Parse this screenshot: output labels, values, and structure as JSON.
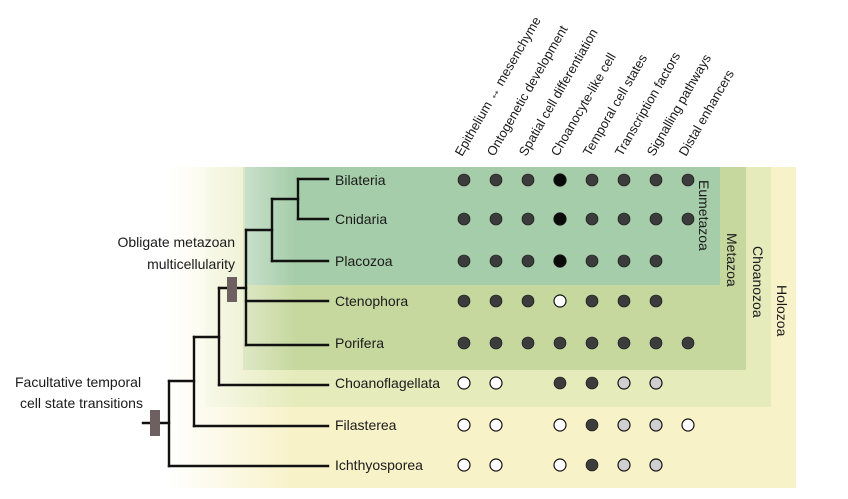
{
  "colors": {
    "holozoa": "#f8f2c8",
    "choanozoa": "#e6ebbb",
    "metazoa": "#c7d89f",
    "eumetazoa": "#a6cdaa",
    "branch": "#111111",
    "marker": "#6e6060",
    "dot_dark": "#3c3c3c",
    "dot_black": "#0a0a0a",
    "dot_grey": "#cfcfcf",
    "dot_white": "#ffffff"
  },
  "columns": [
    "Epithelium ↔ mesenchyme",
    "Ontogenetic development",
    "Spatial cell differentiation",
    "Choanocyte-like cell",
    "Temporal cell states",
    "Transcription factors",
    "Signalling pathways",
    "Distal enhancers"
  ],
  "taxa": [
    {
      "name": "Bilateria",
      "states": [
        "dark",
        "dark",
        "dark",
        "black",
        "dark",
        "dark",
        "dark",
        "dark"
      ]
    },
    {
      "name": "Cnidaria",
      "states": [
        "dark",
        "dark",
        "dark",
        "black",
        "dark",
        "dark",
        "dark",
        "dark"
      ]
    },
    {
      "name": "Placozoa",
      "states": [
        "dark",
        "dark",
        "dark",
        "black",
        "dark",
        "dark",
        "dark",
        ""
      ]
    },
    {
      "name": "Ctenophora",
      "states": [
        "dark",
        "dark",
        "dark",
        "white",
        "dark",
        "dark",
        "dark",
        ""
      ]
    },
    {
      "name": "Porifera",
      "states": [
        "dark",
        "dark",
        "dark",
        "dark",
        "dark",
        "dark",
        "dark",
        "dark"
      ]
    },
    {
      "name": "Choanoflagellata",
      "states": [
        "white",
        "white",
        "",
        "dark",
        "dark",
        "grey",
        "grey",
        ""
      ]
    },
    {
      "name": "Filasterea",
      "states": [
        "white",
        "white",
        "",
        "white",
        "dark",
        "grey",
        "grey",
        "white"
      ]
    },
    {
      "name": "Ichthyosporea",
      "states": [
        "white",
        "white",
        "",
        "white",
        "dark",
        "grey",
        "grey",
        ""
      ]
    }
  ],
  "groups": {
    "eumetazoa": "Eumetazoa",
    "metazoa": "Metazoa",
    "choanozoa": "Choanozoa",
    "holozoa": "Holozoa"
  },
  "annotations": {
    "obligate_line1": "Obligate metazoan",
    "obligate_line2": "multicellularity",
    "facultative_line1": "Facultative temporal",
    "facultative_line2": "cell state transitions"
  }
}
